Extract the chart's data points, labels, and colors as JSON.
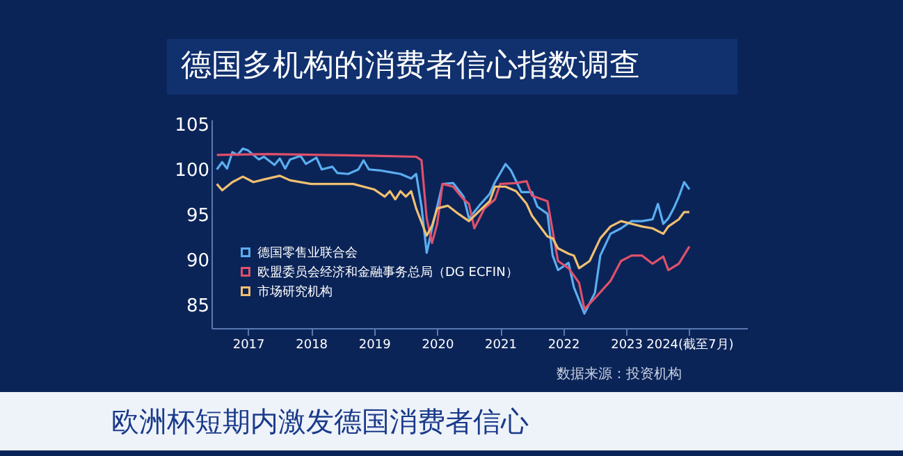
{
  "chart_data": {
    "type": "line",
    "title": "德国多机构的消费者信心指数调查",
    "annotations": [
      "数据来源：投资机构",
      "欧洲杯短期内激发德国消费者信心"
    ],
    "xlim": [
      "2016-12",
      "2025-06"
    ],
    "xticks": [
      {
        "value": "2017-07",
        "label": "2017"
      },
      {
        "value": "2018-07",
        "label": "2018"
      },
      {
        "value": "2019-07",
        "label": "2019"
      },
      {
        "value": "2020-07",
        "label": "2020"
      },
      {
        "value": "2021-07",
        "label": "2021"
      },
      {
        "value": "2022-07",
        "label": "2022"
      },
      {
        "value": "2023-07",
        "label": "2023"
      },
      {
        "value": "2024-07",
        "label": "2024(截至7月)"
      }
    ],
    "ylim": [
      82.5,
      105.5
    ],
    "yticks": [
      85,
      90,
      95,
      100,
      105
    ],
    "legend": "bottom left",
    "series": [
      {
        "name": "德国零售业联合会",
        "color": "#5aaef0",
        "x": [
          "2017-01",
          "2017-02",
          "2017-03",
          "2017-04",
          "2017-05",
          "2017-06",
          "2017-07",
          "2017-09",
          "2017-10",
          "2017-12",
          "2018-01",
          "2018-02",
          "2018-03",
          "2018-05",
          "2018-06",
          "2018-08",
          "2018-09",
          "2018-11",
          "2018-12",
          "2019-02",
          "2019-04",
          "2019-05",
          "2019-06",
          "2019-08",
          "2019-10",
          "2019-12",
          "2020-02",
          "2020-03",
          "2020-04",
          "2020-05",
          "2020-06",
          "2020-08",
          "2020-10",
          "2020-12",
          "2021-01",
          "2021-03",
          "2021-05",
          "2021-06",
          "2021-08",
          "2021-09",
          "2021-11",
          "2022-01",
          "2022-02",
          "2022-04",
          "2022-05",
          "2022-06",
          "2022-08",
          "2022-09",
          "2022-11",
          "2023-01",
          "2023-02",
          "2023-04",
          "2023-06",
          "2023-08",
          "2023-10",
          "2023-12",
          "2024-01",
          "2024-02",
          "2024-03",
          "2024-04",
          "2024-05",
          "2024-06",
          "2024-07"
        ],
        "values": [
          100.0,
          100.8,
          100.1,
          101.9,
          101.6,
          102.3,
          102.1,
          101.1,
          101.4,
          100.5,
          101.2,
          100.1,
          101.1,
          101.5,
          100.6,
          101.3,
          100.0,
          100.3,
          99.6,
          99.5,
          100.0,
          101.0,
          100.0,
          99.9,
          99.7,
          99.5,
          99.0,
          99.5,
          95.9,
          90.8,
          93.5,
          98.4,
          98.5,
          97.0,
          94.6,
          96.0,
          97.3,
          98.6,
          100.6,
          99.9,
          97.5,
          97.5,
          95.9,
          95.1,
          90.5,
          88.9,
          89.7,
          87.0,
          84.1,
          86.4,
          90.5,
          92.9,
          93.5,
          94.3,
          94.3,
          94.5,
          96.2,
          94.0,
          94.6,
          95.7,
          97.0,
          98.6,
          97.8
        ]
      },
      {
        "name": "欧盟委员会经济和金融事务总局（DG ECFIN）",
        "color": "#e0506a",
        "x": [
          "2017-01",
          "2017-11",
          "2018-09",
          "2019-07",
          "2020-03",
          "2020-04",
          "2020-05",
          "2020-06",
          "2020-07",
          "2020-08",
          "2020-10",
          "2020-12",
          "2021-01",
          "2021-02",
          "2021-04",
          "2021-06",
          "2021-07",
          "2021-10",
          "2021-12",
          "2022-01",
          "2022-04",
          "2022-05",
          "2022-06",
          "2022-08",
          "2022-10",
          "2022-11",
          "2023-01",
          "2023-04",
          "2023-06",
          "2023-08",
          "2023-10",
          "2023-12",
          "2024-02",
          "2024-03",
          "2024-05",
          "2024-07"
        ],
        "values": [
          101.6,
          101.7,
          101.6,
          101.5,
          101.4,
          101.0,
          94.6,
          91.9,
          94.0,
          98.4,
          98.1,
          96.7,
          96.2,
          93.5,
          95.7,
          96.7,
          98.4,
          98.5,
          98.7,
          97.1,
          96.5,
          93.2,
          89.9,
          89.1,
          87.5,
          84.6,
          85.8,
          87.7,
          89.9,
          90.5,
          90.5,
          89.6,
          90.4,
          88.9,
          89.6,
          91.5
        ]
      },
      {
        "name": "市场研究机构",
        "color": "#f0c070",
        "x": [
          "2017-01",
          "2017-02",
          "2017-04",
          "2017-06",
          "2017-08",
          "2017-10",
          "2018-01",
          "2018-03",
          "2018-07",
          "2018-11",
          "2019-03",
          "2019-07",
          "2019-09",
          "2019-10",
          "2019-11",
          "2019-12",
          "2020-01",
          "2020-02",
          "2020-03",
          "2020-05",
          "2020-06",
          "2020-07",
          "2020-09",
          "2020-11",
          "2021-01",
          "2021-03",
          "2021-05",
          "2021-06",
          "2021-08",
          "2021-10",
          "2021-12",
          "2022-01",
          "2022-04",
          "2022-05",
          "2022-06",
          "2022-08",
          "2022-09",
          "2022-10",
          "2022-12",
          "2023-02",
          "2023-04",
          "2023-06",
          "2023-08",
          "2023-10",
          "2023-12",
          "2024-02",
          "2024-03",
          "2024-05",
          "2024-06",
          "2024-07"
        ],
        "values": [
          98.4,
          97.7,
          98.6,
          99.2,
          98.6,
          98.9,
          99.3,
          98.8,
          98.4,
          98.4,
          98.4,
          97.8,
          97.0,
          97.6,
          96.7,
          97.6,
          97.0,
          97.6,
          95.7,
          92.7,
          93.8,
          95.7,
          96.0,
          95.1,
          94.3,
          95.4,
          96.5,
          98.1,
          98.1,
          97.6,
          96.2,
          94.9,
          92.6,
          92.4,
          91.3,
          90.7,
          90.5,
          89.1,
          89.9,
          92.4,
          93.7,
          94.3,
          94.0,
          93.7,
          93.5,
          92.9,
          93.7,
          94.5,
          95.3,
          95.3
        ]
      }
    ]
  }
}
